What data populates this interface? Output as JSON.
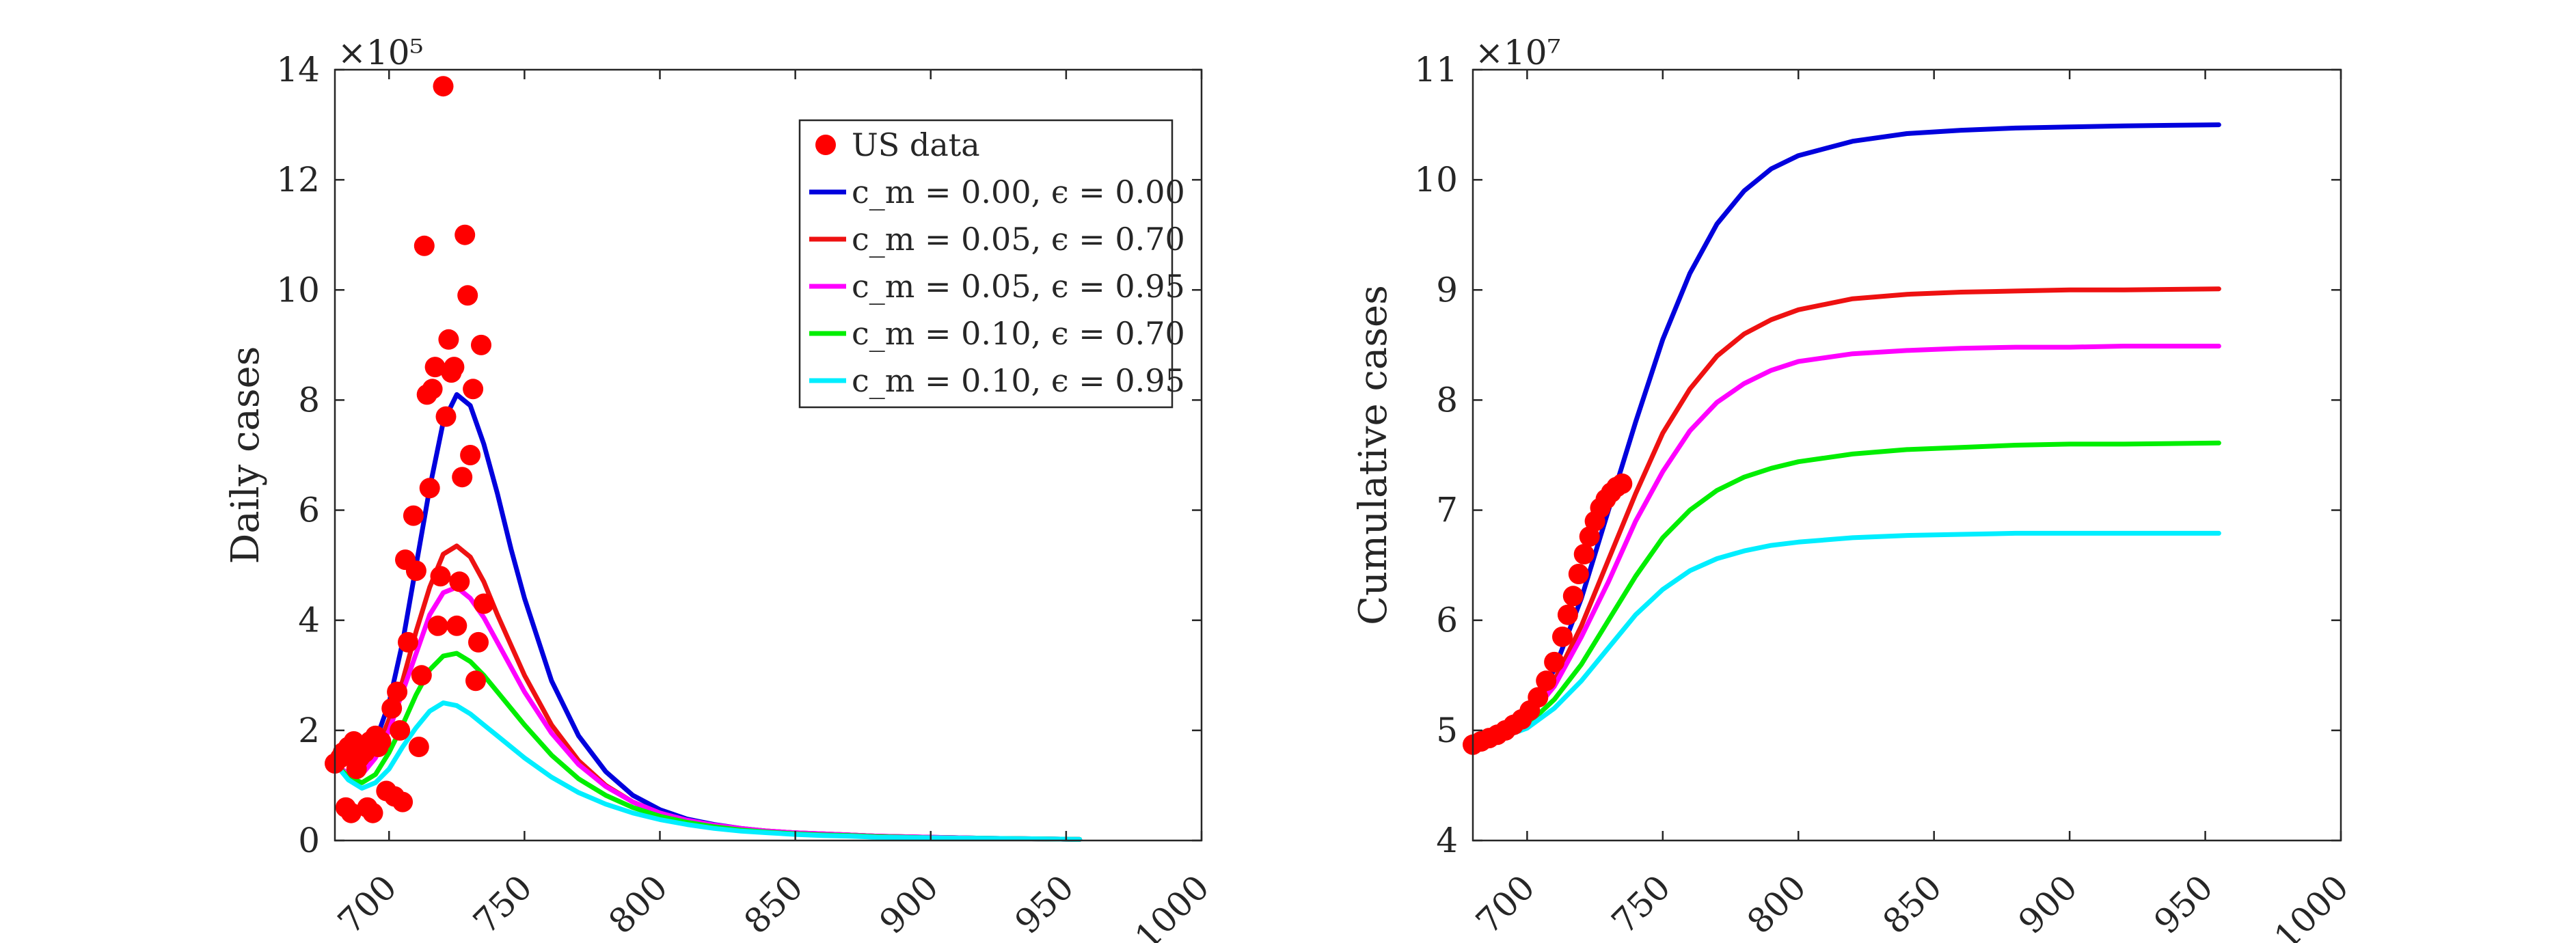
{
  "colors": {
    "us_data": "#ff0000",
    "cm000_e000": "#0000dd",
    "cm005_e070": "#ee1111",
    "cm005_e095": "#ff00ff",
    "cm010_e070": "#00ee00",
    "cm010_e095": "#00eeff",
    "axis": "#262626",
    "legend_border": "#262626"
  },
  "chart_data": [
    {
      "id": "daily",
      "type": "line",
      "title": "",
      "xlabel": "",
      "ylabel": "Daily cases",
      "exponent_label": "×10⁵",
      "xlim": [
        680,
        1000
      ],
      "ylim": [
        0,
        14
      ],
      "xticks": [
        700,
        750,
        800,
        850,
        900,
        950,
        1000
      ],
      "yticks": [
        0,
        2,
        4,
        6,
        8,
        10,
        12,
        14
      ],
      "legend": {
        "position": "top-right",
        "entries": [
          {
            "label": "US data",
            "color_key": "us_data",
            "marker": "dot"
          },
          {
            "label": "c_m = 0.00, ϵ = 0.00",
            "color_key": "cm000_e000",
            "marker": "line"
          },
          {
            "label": "c_m = 0.05, ϵ = 0.70",
            "color_key": "cm005_e070",
            "marker": "line"
          },
          {
            "label": "c_m = 0.05, ϵ = 0.95",
            "color_key": "cm005_e095",
            "marker": "line"
          },
          {
            "label": "c_m = 0.10, ϵ = 0.70",
            "color_key": "cm010_e070",
            "marker": "line"
          },
          {
            "label": "c_m = 0.10, ϵ = 0.95",
            "color_key": "cm010_e095",
            "marker": "line"
          }
        ]
      },
      "scatter": {
        "name": "US data",
        "color_key": "us_data",
        "points": [
          [
            680,
            1.4
          ],
          [
            682,
            1.5
          ],
          [
            683,
            1.6
          ],
          [
            684,
            0.6
          ],
          [
            685,
            1.7
          ],
          [
            686,
            0.5
          ],
          [
            687,
            1.8
          ],
          [
            688,
            1.3
          ],
          [
            689,
            1.5
          ],
          [
            690,
            1.7
          ],
          [
            691,
            1.6
          ],
          [
            692,
            0.6
          ],
          [
            693,
            1.8
          ],
          [
            694,
            0.5
          ],
          [
            695,
            1.9
          ],
          [
            696,
            1.7
          ],
          [
            697,
            1.8
          ],
          [
            699,
            0.9
          ],
          [
            701,
            2.4
          ],
          [
            702,
            0.8
          ],
          [
            703,
            2.7
          ],
          [
            704,
            2.0
          ],
          [
            705,
            0.7
          ],
          [
            706,
            5.1
          ],
          [
            707,
            3.6
          ],
          [
            709,
            5.9
          ],
          [
            710,
            4.9
          ],
          [
            711,
            1.7
          ],
          [
            712,
            3.0
          ],
          [
            713,
            10.8
          ],
          [
            714,
            8.1
          ],
          [
            715,
            6.4
          ],
          [
            716,
            8.2
          ],
          [
            717,
            8.6
          ],
          [
            718,
            3.9
          ],
          [
            719,
            4.8
          ],
          [
            720,
            13.7
          ],
          [
            721,
            7.7
          ],
          [
            722,
            9.1
          ],
          [
            723,
            8.5
          ],
          [
            724,
            8.6
          ],
          [
            725,
            3.9
          ],
          [
            726,
            4.7
          ],
          [
            727,
            6.6
          ],
          [
            728,
            11.0
          ],
          [
            729,
            9.9
          ],
          [
            730,
            7.0
          ],
          [
            731,
            8.2
          ],
          [
            732,
            2.9
          ],
          [
            733,
            3.6
          ],
          [
            734,
            9.0
          ],
          [
            735,
            4.3
          ]
        ]
      },
      "series": [
        {
          "name": "c_m = 0.00, ϵ = 0.00",
          "color_key": "cm000_e000",
          "x": [
            680,
            685,
            690,
            695,
            700,
            705,
            710,
            715,
            720,
            725,
            730,
            735,
            740,
            745,
            750,
            760,
            770,
            780,
            790,
            800,
            810,
            820,
            830,
            840,
            850,
            860,
            870,
            880,
            900,
            920,
            940,
            955
          ],
          "y": [
            1.4,
            1.2,
            1.3,
            1.8,
            2.5,
            3.6,
            5.0,
            6.4,
            7.6,
            8.1,
            7.9,
            7.2,
            6.3,
            5.3,
            4.4,
            2.9,
            1.9,
            1.25,
            0.82,
            0.56,
            0.39,
            0.29,
            0.22,
            0.17,
            0.14,
            0.12,
            0.1,
            0.08,
            0.06,
            0.04,
            0.03,
            0.02
          ]
        },
        {
          "name": "c_m = 0.05, ϵ = 0.70",
          "color_key": "cm005_e070",
          "x": [
            680,
            685,
            690,
            695,
            700,
            705,
            710,
            715,
            720,
            725,
            730,
            735,
            740,
            745,
            750,
            760,
            770,
            780,
            790,
            800,
            810,
            820,
            830,
            840,
            850,
            860,
            870,
            880,
            900,
            920,
            940,
            955
          ],
          "y": [
            1.4,
            1.2,
            1.25,
            1.6,
            2.2,
            2.9,
            3.8,
            4.6,
            5.2,
            5.35,
            5.15,
            4.7,
            4.1,
            3.55,
            3.0,
            2.1,
            1.45,
            1.0,
            0.7,
            0.5,
            0.36,
            0.27,
            0.21,
            0.17,
            0.14,
            0.12,
            0.1,
            0.08,
            0.06,
            0.04,
            0.03,
            0.02
          ]
        },
        {
          "name": "c_m = 0.05, ϵ = 0.95",
          "color_key": "cm005_e095",
          "x": [
            680,
            685,
            690,
            695,
            700,
            705,
            710,
            715,
            720,
            725,
            730,
            735,
            740,
            745,
            750,
            760,
            770,
            780,
            790,
            800,
            810,
            820,
            830,
            840,
            850,
            860,
            870,
            880,
            900,
            920,
            940,
            955
          ],
          "y": [
            1.4,
            1.2,
            1.2,
            1.5,
            2.0,
            2.7,
            3.4,
            4.1,
            4.5,
            4.6,
            4.4,
            4.05,
            3.6,
            3.15,
            2.7,
            1.95,
            1.38,
            0.98,
            0.7,
            0.5,
            0.37,
            0.28,
            0.22,
            0.17,
            0.14,
            0.12,
            0.1,
            0.08,
            0.06,
            0.04,
            0.03,
            0.02
          ]
        },
        {
          "name": "c_m = 0.10, ϵ = 0.70",
          "color_key": "cm010_e070",
          "x": [
            680,
            685,
            690,
            695,
            700,
            705,
            710,
            715,
            720,
            725,
            730,
            735,
            740,
            745,
            750,
            760,
            770,
            780,
            790,
            800,
            810,
            820,
            830,
            840,
            850,
            860,
            870,
            880,
            900,
            920,
            940,
            955
          ],
          "y": [
            1.4,
            1.15,
            1.05,
            1.2,
            1.6,
            2.1,
            2.65,
            3.1,
            3.35,
            3.4,
            3.25,
            3.0,
            2.7,
            2.4,
            2.1,
            1.55,
            1.12,
            0.82,
            0.6,
            0.44,
            0.33,
            0.25,
            0.19,
            0.15,
            0.12,
            0.1,
            0.09,
            0.07,
            0.05,
            0.04,
            0.03,
            0.02
          ]
        },
        {
          "name": "c_m = 0.10, ϵ = 0.95",
          "color_key": "cm010_e095",
          "x": [
            680,
            685,
            690,
            695,
            700,
            705,
            710,
            715,
            720,
            725,
            730,
            735,
            740,
            745,
            750,
            760,
            770,
            780,
            790,
            800,
            810,
            820,
            830,
            840,
            850,
            860,
            870,
            880,
            900,
            920,
            940,
            955
          ],
          "y": [
            1.4,
            1.1,
            0.95,
            1.05,
            1.3,
            1.7,
            2.05,
            2.35,
            2.5,
            2.45,
            2.3,
            2.1,
            1.9,
            1.7,
            1.5,
            1.15,
            0.87,
            0.66,
            0.5,
            0.38,
            0.29,
            0.22,
            0.17,
            0.14,
            0.11,
            0.09,
            0.08,
            0.06,
            0.05,
            0.04,
            0.03,
            0.02
          ]
        }
      ]
    },
    {
      "id": "cumulative",
      "type": "line",
      "title": "",
      "xlabel": "",
      "ylabel": "Cumulative cases",
      "exponent_label": "×10⁷",
      "xlim": [
        680,
        1000
      ],
      "ylim": [
        4,
        11
      ],
      "xticks": [
        700,
        750,
        800,
        850,
        900,
        950,
        1000
      ],
      "yticks": [
        4,
        5,
        6,
        7,
        8,
        9,
        10,
        11
      ],
      "scatter": {
        "name": "US data",
        "color_key": "us_data",
        "points": [
          [
            680,
            4.87
          ],
          [
            683,
            4.9
          ],
          [
            686,
            4.93
          ],
          [
            689,
            4.96
          ],
          [
            692,
            5.0
          ],
          [
            695,
            5.05
          ],
          [
            698,
            5.1
          ],
          [
            701,
            5.18
          ],
          [
            704,
            5.3
          ],
          [
            707,
            5.45
          ],
          [
            710,
            5.62
          ],
          [
            713,
            5.85
          ],
          [
            715,
            6.05
          ],
          [
            717,
            6.22
          ],
          [
            719,
            6.42
          ],
          [
            721,
            6.6
          ],
          [
            723,
            6.76
          ],
          [
            725,
            6.9
          ],
          [
            727,
            7.02
          ],
          [
            729,
            7.1
          ],
          [
            731,
            7.16
          ],
          [
            733,
            7.21
          ],
          [
            735,
            7.24
          ]
        ]
      },
      "series": [
        {
          "name": "c_m = 0.00, ϵ = 0.00",
          "color_key": "cm000_e000",
          "x": [
            680,
            690,
            700,
            710,
            720,
            730,
            740,
            750,
            760,
            770,
            780,
            790,
            800,
            820,
            840,
            860,
            880,
            900,
            920,
            955
          ],
          "y": [
            4.88,
            4.97,
            5.15,
            5.55,
            6.2,
            7.0,
            7.8,
            8.55,
            9.15,
            9.6,
            9.9,
            10.1,
            10.22,
            10.35,
            10.42,
            10.45,
            10.47,
            10.48,
            10.49,
            10.5
          ]
        },
        {
          "name": "c_m = 0.05, ϵ = 0.70",
          "color_key": "cm005_e070",
          "x": [
            680,
            690,
            700,
            710,
            720,
            730,
            740,
            750,
            760,
            770,
            780,
            790,
            800,
            820,
            840,
            860,
            880,
            900,
            920,
            955
          ],
          "y": [
            4.88,
            4.96,
            5.12,
            5.45,
            5.95,
            6.55,
            7.15,
            7.7,
            8.1,
            8.4,
            8.6,
            8.73,
            8.82,
            8.92,
            8.96,
            8.98,
            8.99,
            9.0,
            9.0,
            9.01
          ]
        },
        {
          "name": "c_m = 0.05, ϵ = 0.95",
          "color_key": "cm005_e095",
          "x": [
            680,
            690,
            700,
            710,
            720,
            730,
            740,
            750,
            760,
            770,
            780,
            790,
            800,
            820,
            840,
            860,
            880,
            900,
            920,
            955
          ],
          "y": [
            4.88,
            4.95,
            5.1,
            5.4,
            5.85,
            6.35,
            6.9,
            7.35,
            7.72,
            7.98,
            8.15,
            8.27,
            8.35,
            8.42,
            8.45,
            8.47,
            8.48,
            8.48,
            8.49,
            8.49
          ]
        },
        {
          "name": "c_m = 0.10, ϵ = 0.70",
          "color_key": "cm010_e070",
          "x": [
            680,
            690,
            700,
            710,
            720,
            730,
            740,
            750,
            760,
            770,
            780,
            790,
            800,
            820,
            840,
            860,
            880,
            900,
            920,
            955
          ],
          "y": [
            4.88,
            4.94,
            5.05,
            5.28,
            5.6,
            6.0,
            6.4,
            6.75,
            7.0,
            7.18,
            7.3,
            7.38,
            7.44,
            7.51,
            7.55,
            7.57,
            7.59,
            7.6,
            7.6,
            7.61
          ]
        },
        {
          "name": "c_m = 0.10, ϵ = 0.95",
          "color_key": "cm010_e095",
          "x": [
            680,
            690,
            700,
            710,
            720,
            730,
            740,
            750,
            760,
            770,
            780,
            790,
            800,
            820,
            840,
            860,
            880,
            900,
            920,
            955
          ],
          "y": [
            4.88,
            4.93,
            5.02,
            5.2,
            5.45,
            5.75,
            6.05,
            6.28,
            6.45,
            6.56,
            6.63,
            6.68,
            6.71,
            6.75,
            6.77,
            6.78,
            6.79,
            6.79,
            6.79,
            6.79
          ]
        }
      ]
    }
  ]
}
